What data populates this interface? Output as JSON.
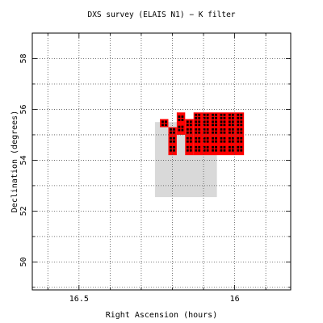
{
  "chart_data": {
    "type": "scatter",
    "title": "DXS survey (ELAIS N1) − K filter",
    "xlabel": "Right Ascension (hours)",
    "ylabel": "Declination (degrees)",
    "xlim": [
      16.65,
      15.82
    ],
    "ylim": [
      48.9,
      59.0
    ],
    "x_major_ticks": [
      16.5,
      16.0
    ],
    "x_tick_labels": [
      "16.5",
      "16"
    ],
    "y_major_ticks": [
      50,
      52,
      54,
      56,
      58
    ],
    "y_tick_labels": [
      "50",
      "52",
      "54",
      "56",
      "58"
    ],
    "grid": true,
    "colors": {
      "coverage": "#d9d9d9",
      "tiles": "#ff0000",
      "markers": "#000000",
      "grid": "#555555"
    },
    "coverage_region": {
      "ra": [
        16.256,
        16.057
      ],
      "dec": [
        52.55,
        55.5
      ]
    },
    "tile_columns": [
      {
        "ra": [
          16.24,
          16.213
        ],
        "dec": [
          55.3,
          55.62
        ]
      },
      {
        "ra": [
          16.213,
          16.186
        ],
        "dec": [
          54.2,
          55.3
        ]
      },
      {
        "ra": [
          16.186,
          16.159
        ],
        "dec": [
          55.0,
          55.88
        ]
      },
      {
        "ra": [
          16.159,
          16.132
        ],
        "dec": [
          54.2,
          55.62
        ]
      },
      {
        "ra": [
          16.132,
          15.97
        ],
        "dec": [
          54.2,
          55.88
        ]
      }
    ],
    "observed_fields": [
      {
        "ra": 16.2,
        "dec": 54.45
      },
      {
        "ra": 16.2,
        "dec": 54.8
      },
      {
        "ra": 16.2,
        "dec": 55.15
      },
      {
        "ra": 16.226,
        "dec": 55.45
      },
      {
        "ra": 16.173,
        "dec": 55.25
      },
      {
        "ra": 16.173,
        "dec": 55.65
      },
      {
        "ra": 16.146,
        "dec": 54.45
      },
      {
        "ra": 16.146,
        "dec": 54.8
      },
      {
        "ra": 16.146,
        "dec": 55.15
      },
      {
        "ra": 16.146,
        "dec": 55.45
      },
      {
        "ra": 16.119,
        "dec": 54.45
      },
      {
        "ra": 16.119,
        "dec": 54.8
      },
      {
        "ra": 16.119,
        "dec": 55.15
      },
      {
        "ra": 16.119,
        "dec": 55.45
      },
      {
        "ra": 16.119,
        "dec": 55.72
      },
      {
        "ra": 16.092,
        "dec": 54.45
      },
      {
        "ra": 16.092,
        "dec": 54.8
      },
      {
        "ra": 16.092,
        "dec": 55.15
      },
      {
        "ra": 16.092,
        "dec": 55.45
      },
      {
        "ra": 16.092,
        "dec": 55.72
      },
      {
        "ra": 16.065,
        "dec": 54.45
      },
      {
        "ra": 16.065,
        "dec": 54.8
      },
      {
        "ra": 16.065,
        "dec": 55.15
      },
      {
        "ra": 16.065,
        "dec": 55.45
      },
      {
        "ra": 16.065,
        "dec": 55.72
      },
      {
        "ra": 16.038,
        "dec": 54.45
      },
      {
        "ra": 16.038,
        "dec": 54.8
      },
      {
        "ra": 16.038,
        "dec": 55.15
      },
      {
        "ra": 16.038,
        "dec": 55.45
      },
      {
        "ra": 16.038,
        "dec": 55.72
      },
      {
        "ra": 16.011,
        "dec": 54.45
      },
      {
        "ra": 16.011,
        "dec": 54.8
      },
      {
        "ra": 16.011,
        "dec": 55.15
      },
      {
        "ra": 16.011,
        "dec": 55.45
      },
      {
        "ra": 16.011,
        "dec": 55.72
      },
      {
        "ra": 15.984,
        "dec": 54.45
      },
      {
        "ra": 15.984,
        "dec": 54.8
      },
      {
        "ra": 15.984,
        "dec": 55.15
      },
      {
        "ra": 15.984,
        "dec": 55.45
      },
      {
        "ra": 15.984,
        "dec": 55.72
      }
    ]
  }
}
